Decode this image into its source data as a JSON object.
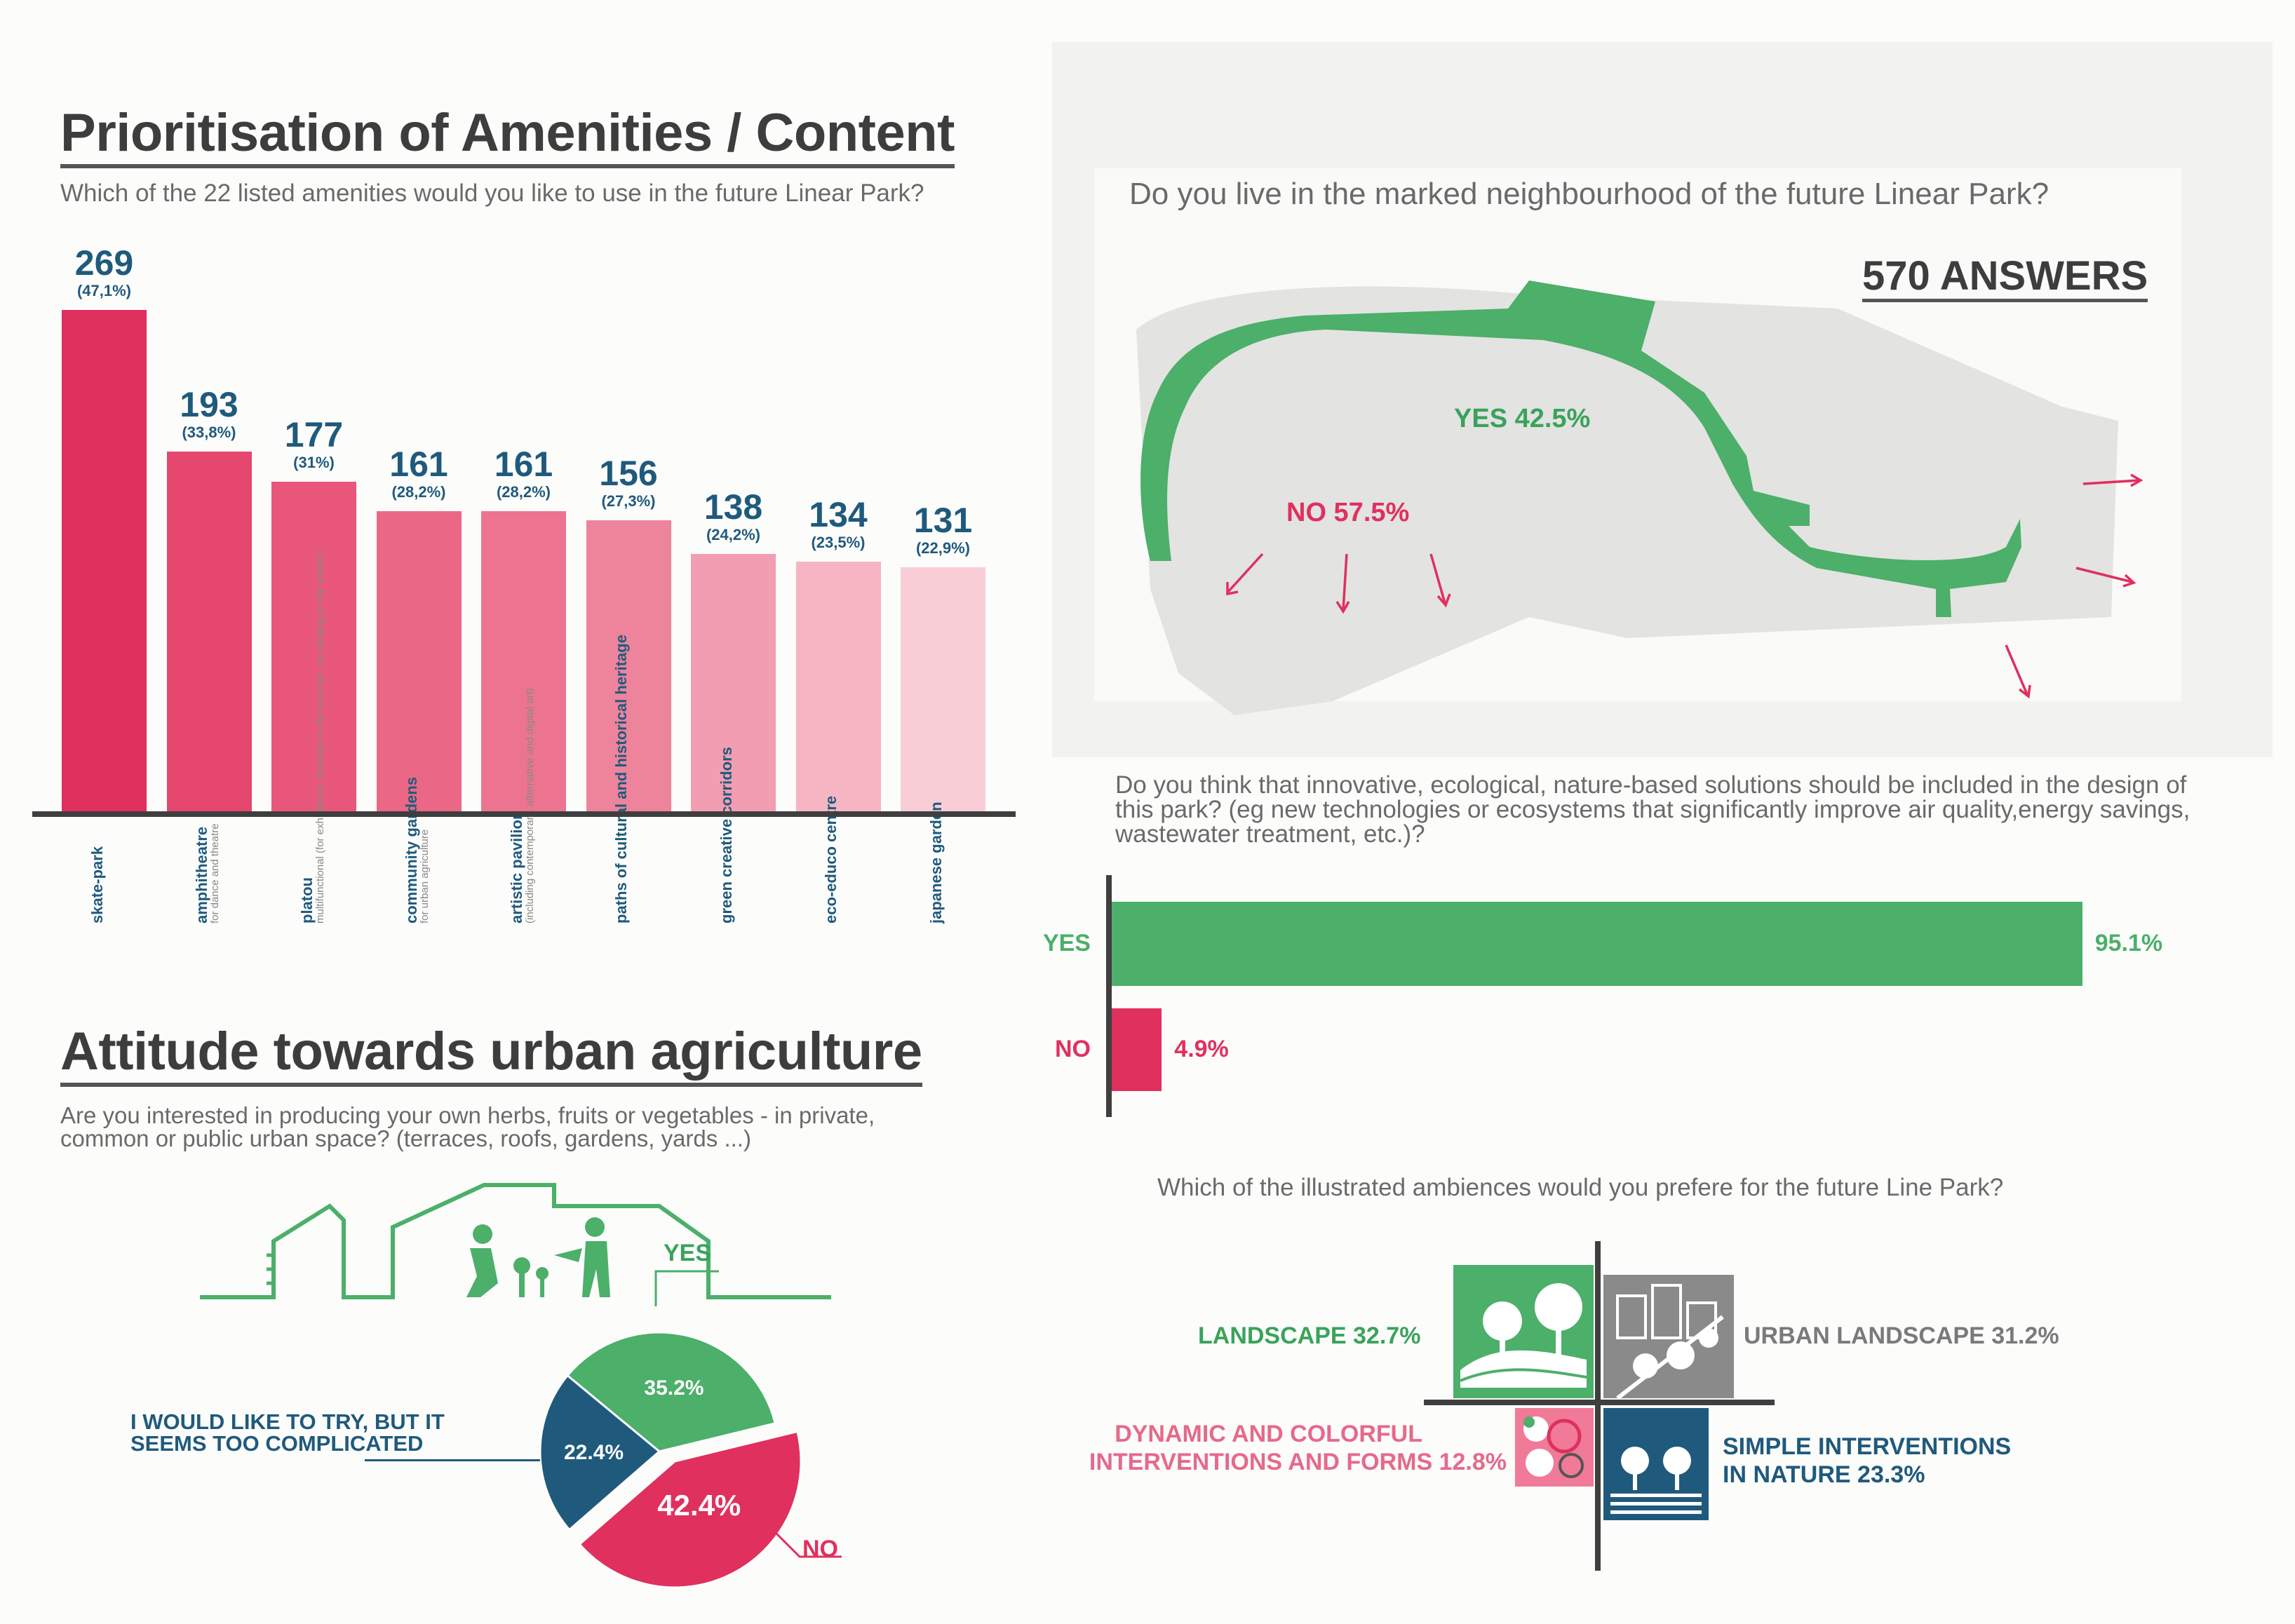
{
  "colors": {
    "green": "#4caf6a",
    "pink": "#e0305e",
    "blue": "#1f5a7c",
    "grey": "#8a8a8a"
  },
  "amenities": {
    "title": "Prioritisation of Amenities / Content",
    "question": "Which of the 22 listed amenities would you like to use in the future Linear Park?"
  },
  "urban_ag": {
    "title": "Attitude towards urban agriculture",
    "question": "Are you interested in producing your own herbs, fruits or vegetables - in private, common or public urban space? (terraces, roofs, gardens, yards ...)",
    "yes_label": "YES",
    "no_label": "NO",
    "try_label": "I WOULD LIKE TO TRY, BUT IT SEEMS TOO COMPLICATED"
  },
  "neighbourhood": {
    "question": "Do you live in the marked neighbourhood of the future Linear Park?",
    "answers": "570 ANSWERS",
    "yes_label": "YES 42.5%",
    "no_label": "NO 57.5%"
  },
  "nbs": {
    "question": "Do you think that innovative, ecological, nature-based solutions should be included in the design of this park? (eg new technologies or ecosystems that significantly improve air quality,energy savings, wastewater treatment, etc.)?"
  },
  "ambience": {
    "question": "Which of the illustrated ambiences would you prefere for the future Line Park?",
    "landscape": "LANDSCAPE 32.7%",
    "urban": "URBAN LANDSCAPE 31.2%",
    "dynamic_1": "DYNAMIC AND COLORFUL",
    "dynamic_2": "INTERVENTIONS AND FORMS 12.8%",
    "simple_1": "SIMPLE INTERVENTIONS",
    "simple_2": "IN NATURE 23.3%"
  },
  "chart_data": [
    {
      "type": "bar",
      "title": "Prioritisation of Amenities / Content",
      "categories": [
        "skate-park",
        "amphitheatre",
        "platou",
        "community gardens",
        "artistic pavilion",
        "paths of cultural and historical heritage",
        "green creative corridors",
        "eco-educo centre",
        "japanese garden"
      ],
      "category_notes": [
        "",
        "for dance and theatre",
        "multifunctional (for exhibitions, festivals in the summer, ice-skating in the winter)",
        "for urban agriculture",
        "(including contemporary, alternative and digital art)",
        "",
        "",
        "",
        ""
      ],
      "values": [
        269,
        193,
        177,
        161,
        161,
        156,
        138,
        134,
        131
      ],
      "percent_labels": [
        "(47,1%)",
        "(33,8%)",
        "(31%)",
        "(28,2%)",
        "(28,2%)",
        "(27,3%)",
        "(24,2%)",
        "(23,5%)",
        "(22,9%)"
      ],
      "colors": [
        "#e0305e",
        "#e6476f",
        "#e8577b",
        "#ea6886",
        "#ec7490",
        "#ee839c",
        "#f29db1",
        "#f6b5c3",
        "#f9cdd6"
      ],
      "ylim": [
        0,
        269
      ]
    },
    {
      "type": "pie",
      "title": "Attitude towards urban agriculture",
      "labels": [
        "YES",
        "NO",
        "I WOULD LIKE TO TRY, BUT IT SEEMS TOO COMPLICATED"
      ],
      "values": [
        35.2,
        42.4,
        22.4
      ],
      "value_labels": [
        "35.2%",
        "42.4%",
        "22.4%"
      ],
      "colors": [
        "#4caf6a",
        "#e0305e",
        "#1f5a7c"
      ]
    },
    {
      "type": "bar",
      "orientation": "horizontal",
      "categories": [
        "YES",
        "NO"
      ],
      "values": [
        95.1,
        4.9
      ],
      "value_labels": [
        "95.1%",
        "4.9%"
      ],
      "colors": [
        "#4caf6a",
        "#e0305e"
      ],
      "xlim": [
        0,
        100
      ]
    }
  ]
}
